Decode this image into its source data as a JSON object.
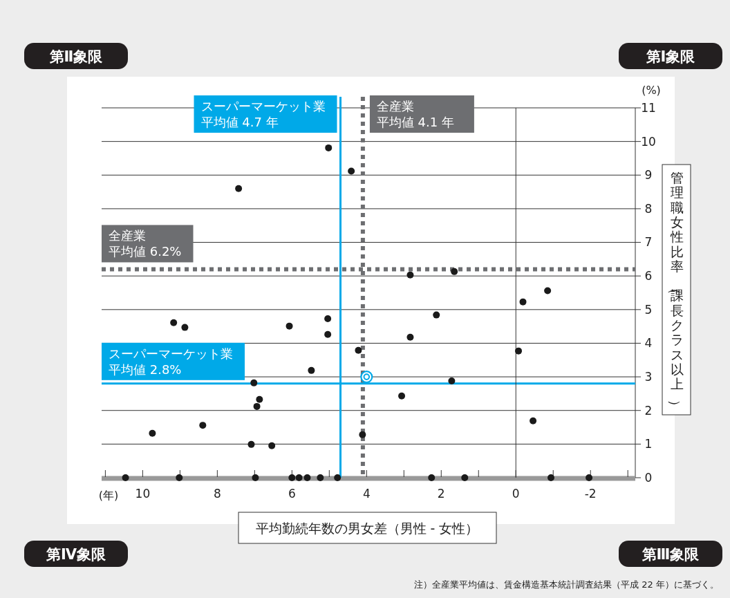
{
  "chart_data": {
    "type": "scatter",
    "xlabel": "平均勤続年数の男女差（男性 - 女性）",
    "ylabel": "管理職女性比率（課長クラス以上）",
    "xlim": [
      11.1,
      -3.2
    ],
    "xticks": [
      {
        "value": 11,
        "label": null
      },
      10,
      {
        "value": 9,
        "label": null
      },
      8,
      {
        "value": 7,
        "label": null
      },
      6,
      {
        "value": 5,
        "label": null
      },
      4,
      {
        "value": 3,
        "label": null
      },
      2,
      {
        "value": 1,
        "label": null
      },
      0,
      {
        "value": -1,
        "label": null
      },
      -2,
      {
        "value": -3,
        "label": null
      }
    ],
    "ylim": [
      0,
      11
    ],
    "yticks": [
      0,
      1,
      2,
      3,
      4,
      5,
      6,
      7,
      8,
      9,
      10,
      11
    ],
    "grid": "y",
    "marker": "circle",
    "series": [
      {
        "color": "#1a1a1a",
        "x": [
          10.46,
          9.02,
          6.98,
          6.0,
          5.81,
          5.59,
          5.24,
          4.78,
          2.26,
          1.37,
          -0.94,
          -1.96,
          9.74,
          8.39,
          7.09,
          6.54,
          6.94,
          6.87,
          7.02,
          4.11,
          5.48,
          9.17,
          8.87,
          6.07,
          5.04,
          5.04,
          4.22,
          7.43,
          5.02,
          4.41,
          3.06,
          2.83,
          2.83,
          2.13,
          1.65,
          1.72,
          -0.07,
          -0.19,
          -0.46,
          -0.85
        ],
        "values": [
          0,
          0,
          0,
          0,
          0,
          0,
          0,
          0,
          0,
          0,
          0,
          0,
          1.32,
          1.56,
          0.99,
          0.95,
          2.12,
          2.33,
          2.82,
          1.28,
          3.19,
          4.61,
          4.47,
          4.51,
          4.73,
          4.26,
          3.79,
          8.6,
          9.81,
          9.12,
          2.43,
          6.03,
          4.18,
          4.84,
          6.13,
          2.88,
          3.77,
          5.23,
          1.69,
          5.56
        ]
      },
      {
        "color": "#00a9e8",
        "x": [
          4.0
        ],
        "values": [
          3.0
        ]
      }
    ],
    "ref_lines": [
      {
        "axis": "x",
        "value": 4.7,
        "label": "スーパーマーケット業平均値 4.7 年",
        "color": "#00a9e8",
        "line_style": "solid"
      },
      {
        "axis": "x",
        "value": 4.1,
        "label": "全産業平均値 4.1 年",
        "color": "#6d6e71",
        "line_style": "dotted"
      },
      {
        "axis": "y",
        "value": 6.2,
        "label": "全産業平均値 6.2%",
        "color": "#6d6e71",
        "line_style": "dotted"
      },
      {
        "axis": "y",
        "value": 2.8,
        "label": "スーパーマーケット業平均値 2.8%",
        "color": "#00a9e8",
        "line_style": "solid"
      },
      {
        "axis": "x",
        "value": 0,
        "color": "#333333",
        "line_style": "solid"
      }
    ],
    "annotations": [
      "第Ⅱ象限",
      "第Ⅰ象限",
      "第Ⅳ象限",
      "第Ⅲ象限",
      "(%)",
      "(年)",
      "注）全産業平均値は、賃金構造基本統計調査結果（平成 22 年）に基づく。"
    ]
  }
}
